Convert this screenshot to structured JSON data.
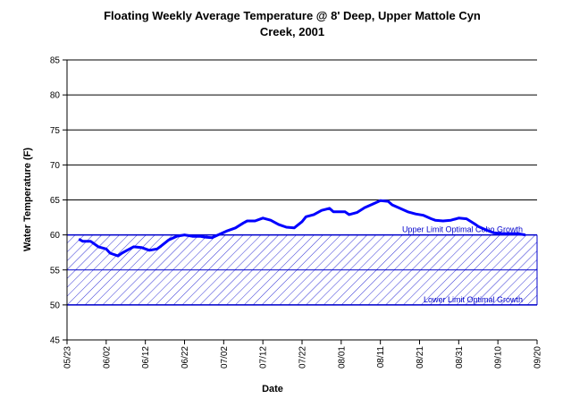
{
  "chart_data": {
    "type": "line",
    "title": [
      "Floating Weekly Average Temperature @ 8' Deep, Upper Mattole Cyn",
      "Creek, 2001"
    ],
    "x_label": "Date",
    "y_label": "Water Temperature (F)",
    "xlim": [
      "05/23",
      "09/20"
    ],
    "xticks": [
      "05/23",
      "06/02",
      "06/12",
      "06/22",
      "07/02",
      "07/12",
      "07/22",
      "08/01",
      "08/11",
      "08/21",
      "08/31",
      "09/10",
      "09/20"
    ],
    "ylim": [
      45,
      85
    ],
    "yticks": [
      45,
      50,
      55,
      60,
      65,
      70,
      75,
      80,
      85
    ],
    "grid": true,
    "bands": [
      {
        "label": "Upper Limit Optimal Coho Growth",
        "value": 60
      },
      {
        "label": "Lower Limit Optimal Growth",
        "value": 50
      }
    ],
    "band_color": "#0000cc",
    "series": [
      {
        "color": "#0000ff",
        "x": [
          "05/26",
          "05/27",
          "05/29",
          "05/31",
          "06/02",
          "06/03",
          "06/05",
          "06/06",
          "06/07",
          "06/09",
          "06/11",
          "06/13",
          "06/15",
          "06/16",
          "06/18",
          "06/20",
          "06/22",
          "06/24",
          "06/26",
          "06/27",
          "06/29",
          "07/01",
          "07/03",
          "07/05",
          "07/07",
          "07/08",
          "07/10",
          "07/12",
          "07/14",
          "07/16",
          "07/18",
          "07/20",
          "07/22",
          "07/23",
          "07/25",
          "07/27",
          "07/29",
          "07/30",
          "08/02",
          "08/03",
          "08/05",
          "08/07",
          "08/09",
          "08/11",
          "08/13",
          "08/14",
          "08/16",
          "08/18",
          "08/20",
          "08/22",
          "08/24",
          "08/25",
          "08/27",
          "08/29",
          "08/31",
          "09/02",
          "09/04",
          "09/05",
          "09/07",
          "09/09",
          "09/11",
          "09/13",
          "09/15",
          "09/17"
        ],
        "values": [
          59.4,
          59.1,
          59.1,
          58.3,
          58.0,
          57.4,
          57.0,
          57.4,
          57.7,
          58.3,
          58.2,
          57.8,
          58.0,
          58.4,
          59.3,
          59.8,
          60.0,
          59.8,
          59.8,
          59.7,
          59.6,
          60.1,
          60.6,
          61.0,
          61.7,
          62.0,
          62.0,
          62.4,
          62.1,
          61.5,
          61.1,
          61.0,
          61.9,
          62.6,
          62.9,
          63.5,
          63.8,
          63.3,
          63.3,
          62.9,
          63.2,
          63.9,
          64.4,
          64.9,
          64.8,
          64.3,
          63.8,
          63.3,
          63.0,
          62.8,
          62.3,
          62.1,
          62.0,
          62.1,
          62.4,
          62.3,
          61.6,
          61.2,
          60.7,
          60.3,
          60.2,
          60.2,
          60.2,
          60.0
        ]
      }
    ]
  }
}
